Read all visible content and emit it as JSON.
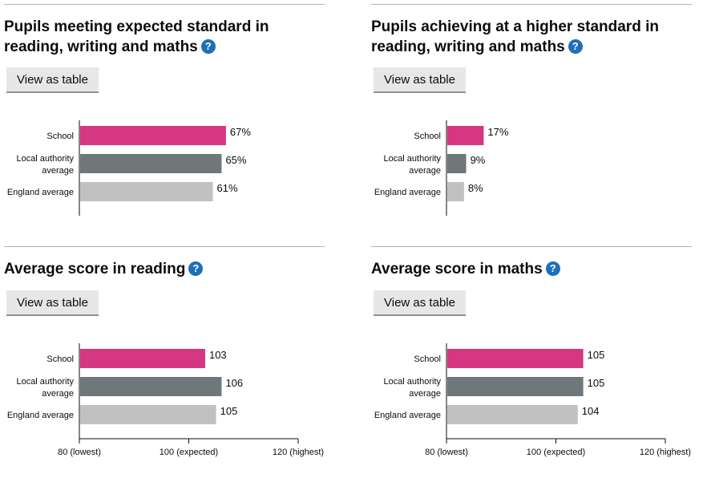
{
  "view_table_label": "View as table",
  "help_symbol": "?",
  "colors": {
    "school": "#d53880",
    "local": "#6f777b",
    "england": "#bfc1c3"
  },
  "chart_data": [
    {
      "type": "bar",
      "orientation": "horizontal",
      "title": "Pupils meeting expected standard in reading, writing and maths",
      "categories": [
        "School",
        "Local authority average",
        "England average"
      ],
      "values": [
        67,
        65,
        61
      ],
      "value_labels": [
        "67%",
        "65%",
        "61%"
      ],
      "xlim": [
        0,
        100
      ],
      "ticks": []
    },
    {
      "type": "bar",
      "orientation": "horizontal",
      "title": "Pupils achieving at a higher standard in reading, writing and maths",
      "categories": [
        "School",
        "Local authority average",
        "England average"
      ],
      "values": [
        17,
        9,
        8
      ],
      "value_labels": [
        "17%",
        "9%",
        "8%"
      ],
      "xlim": [
        0,
        100
      ],
      "ticks": []
    },
    {
      "type": "bar",
      "orientation": "horizontal",
      "title": "Average score in reading",
      "categories": [
        "School",
        "Local authority average",
        "England average"
      ],
      "values": [
        103,
        106,
        105
      ],
      "value_labels": [
        "103",
        "106",
        "105"
      ],
      "xlim": [
        80,
        120
      ],
      "ticks": [
        {
          "value": 80,
          "label": "80 (lowest)"
        },
        {
          "value": 100,
          "label": "100 (expected)"
        },
        {
          "value": 120,
          "label": "120 (highest)"
        }
      ]
    },
    {
      "type": "bar",
      "orientation": "horizontal",
      "title": "Average score in maths",
      "categories": [
        "School",
        "Local authority average",
        "England average"
      ],
      "values": [
        105,
        105,
        104
      ],
      "value_labels": [
        "105",
        "105",
        "104"
      ],
      "xlim": [
        80,
        120
      ],
      "ticks": [
        {
          "value": 80,
          "label": "80 (lowest)"
        },
        {
          "value": 100,
          "label": "100 (expected)"
        },
        {
          "value": 120,
          "label": "120 (highest)"
        }
      ]
    }
  ]
}
